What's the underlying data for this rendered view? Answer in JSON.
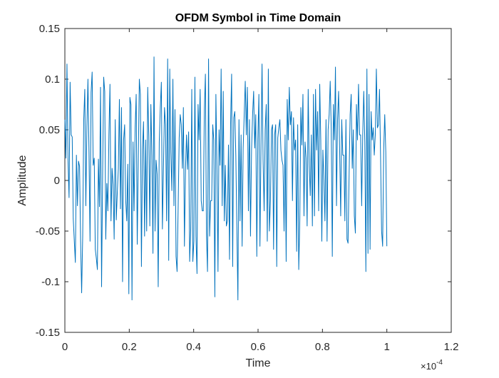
{
  "chart_data": {
    "type": "line",
    "title": "OFDM Symbol in Time Domain",
    "xlabel": "Time",
    "ylabel": "Amplitude",
    "xlim": [
      0,
      0.00012
    ],
    "ylim": [
      -0.15,
      0.15
    ],
    "x_tick_values": [
      0,
      0.2,
      0.4,
      0.6,
      0.8,
      1,
      1.2
    ],
    "x_tick_labels": [
      "0",
      "0.2",
      "0.4",
      "0.6",
      "0.8",
      "1",
      "1.2"
    ],
    "x_exponent_base": "×10",
    "x_exponent_power": "-4",
    "y_tick_values": [
      -0.15,
      -0.1,
      -0.05,
      0,
      0.05,
      0.1,
      0.15
    ],
    "y_tick_labels": [
      "-0.15",
      "-0.1",
      "-0.05",
      "0",
      "0.05",
      "0.1",
      "0.15"
    ],
    "grid": false,
    "line_color": "#0072BD",
    "series": [
      {
        "x_start": 0,
        "x_end": 0.0001,
        "values": [
          0.06,
          0.022,
          0.115,
          0.02,
          -0.017,
          0.097,
          0.045,
          0.043,
          -0.038,
          -0.06,
          -0.081,
          0.025,
          -0.025,
          0.019,
          0.014,
          -0.06,
          -0.111,
          -0.055,
          0.06,
          0.09,
          -0.025,
          0.053,
          0.1,
          0.028,
          -0.06,
          0.087,
          0.107,
          0.015,
          0.022,
          -0.068,
          -0.077,
          -0.088,
          0.021,
          -0.026,
          0.092,
          -0.105,
          0.005,
          0.102,
          0.088,
          -0.058,
          -0.003,
          -0.03,
          0.045,
          0.095,
          -0.04,
          0.012,
          -0.004,
          -0.058,
          0.06,
          -0.039,
          -0.012,
          0.012,
          0.08,
          -0.028,
          0.072,
          -0.1,
          0.04,
          0.055,
          -0.019,
          -0.04,
          0.016,
          -0.112,
          0.082,
          0.075,
          -0.118,
          0.038,
          -0.03,
          0.052,
          0.085,
          -0.063,
          0.02,
          0.1,
          0.085,
          -0.085,
          0.03,
          0.058,
          -0.055,
          0.04,
          -0.05,
          0.092,
          0.044,
          -0.045,
          0.075,
          0.025,
          -0.072,
          0.122,
          -0.05,
          0.02,
          0.006,
          -0.105,
          0.038,
          0.072,
          0.097,
          -0.048,
          0.012,
          0.072,
          0.055,
          -0.04,
          0.12,
          -0.079,
          0.11,
          0.028,
          -0.01,
          0.1,
          -0.025,
          0.07,
          -0.075,
          -0.09,
          -0.028,
          0.042,
          0.065,
          0.055,
          0.012,
          0.072,
          -0.065,
          0.01,
          0.045,
          0.011,
          0.048,
          -0.08,
          -0.048,
          0.09,
          -0.08,
          -0.06,
          0.102,
          -0.055,
          -0.092,
          0.075,
          0.04,
          0.09,
          -0.02,
          -0.03,
          -0.03,
          0.07,
          0.105,
          -0.052,
          -0.09,
          0.12,
          -0.055,
          -0.02,
          -0.02,
          0.055,
          0.04,
          -0.115,
          0.085,
          0.015,
          -0.09,
          0.05,
          0.015,
          0.11,
          -0.025,
          0.088,
          -0.04,
          0.015,
          -0.045,
          -0.04,
          0.035,
          -0.078,
          0.055,
          0.105,
          -0.085,
          0.062,
          0.068,
          0.025,
          -0.048,
          -0.118,
          0.06,
          -0.04,
          0.045,
          -0.065,
          0.032,
          0.065,
          0.098,
          0.045,
          0.092,
          -0.03,
          0.06,
          -0.055,
          0.03,
          0.065,
          0.088,
          0.032,
          0.065,
          -0.075,
          0.04,
          0.085,
          -0.065,
          0.035,
          0.115,
          0.02,
          -0.03,
          0.05,
          0.075,
          -0.06,
          0.11,
          -0.05,
          -0.02,
          0.05,
          0.055,
          -0.068,
          0.045,
          0.055,
          -0.085,
          0.042,
          0.052,
          0.06,
          0.03,
          0.02,
          0.015,
          -0.05,
          0.045,
          -0.08,
          0.08,
          0.04,
          0.092,
          0.055,
          0.068,
          -0.02,
          0.062,
          0.03,
          0.04,
          -0.07,
          0.055,
          -0.088,
          -0.04,
          0.072,
          0.035,
          0.085,
          -0.035,
          0.038,
          0.022,
          -0.045,
          0.09,
          0.015,
          -0.015,
          0.045,
          -0.045,
          0.085,
          -0.035,
          0.09,
          0.03,
          0.068,
          -0.03,
          0.095,
          0.04,
          -0.06,
          0.03,
          0.0,
          -0.04,
          0.06,
          -0.06,
          0.05,
          0.065,
          0.098,
          0.05,
          -0.075,
          0.075,
          0.04,
          0.112,
          -0.025,
          0.06,
          0.088,
          0.03,
          -0.035,
          0.06,
          0.025,
          0.025,
          -0.04,
          0.06,
          -0.058,
          -0.062,
          0.005,
          0.065,
          0.085,
          0.012,
          0.05,
          -0.035,
          -0.052,
          0.075,
          0.04,
          0.095,
          0.045,
          0.045,
          -0.025,
          0.045,
          0.088,
          0.038,
          -0.09,
          0.11,
          -0.072,
          0.085,
          -0.068,
          0.068,
          0.04,
          0.052,
          0.025,
          0.045,
          0.11,
          0.052,
          0.055,
          0.09,
          0.025,
          -0.05,
          -0.065,
          0.03,
          0.065,
          0.028,
          -0.065
        ]
      }
    ]
  }
}
